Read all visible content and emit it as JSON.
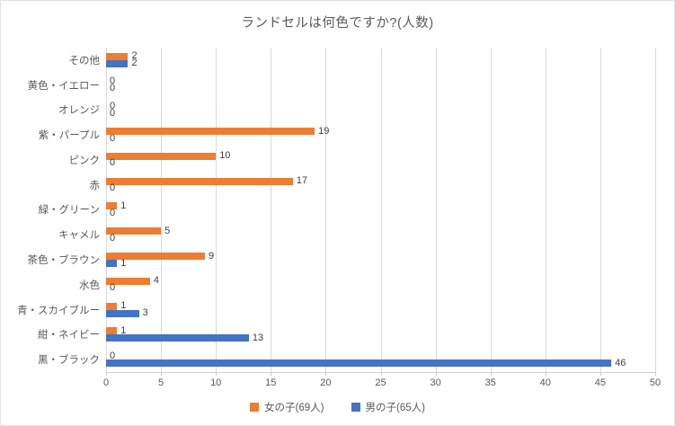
{
  "chart_data": {
    "type": "bar",
    "orientation": "horizontal",
    "title": "ランドセルは何色ですか?(人数)",
    "categories": [
      "その他",
      "黄色・イエロー",
      "オレンジ",
      "紫・パープル",
      "ピンク",
      "赤",
      "緑・グリーン",
      "キャメル",
      "茶色・ブラウン",
      "水色",
      "青・スカイブルー",
      "紺・ネイビー",
      "黒・ブラック"
    ],
    "series": [
      {
        "name": "女の子(69人)",
        "color": "#ED7D31",
        "values": [
          2,
          0,
          0,
          19,
          10,
          17,
          1,
          5,
          9,
          4,
          1,
          1,
          0
        ]
      },
      {
        "name": "男の子(65人)",
        "color": "#4472C4",
        "values": [
          2,
          0,
          0,
          0,
          0,
          0,
          0,
          0,
          1,
          0,
          3,
          13,
          46
        ]
      }
    ],
    "xlim": [
      0,
      50
    ],
    "xticks": [
      0,
      5,
      10,
      15,
      20,
      25,
      30,
      35,
      40,
      45,
      50
    ],
    "grid": true,
    "data_labels": true,
    "legend_position": "bottom",
    "colors": {
      "girls_bar": "#ED7D31",
      "boys_bar": "#4472C4",
      "title_text": "#595959",
      "axis_text": "#595959",
      "data_label_text": "#404040",
      "gridline": "#D9D9D9",
      "axis_line": "#D0D0D0"
    }
  }
}
